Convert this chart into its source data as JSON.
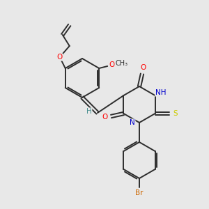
{
  "bg_color": "#e8e8e8",
  "bond_color": "#2d2d2d",
  "atom_colors": {
    "O": "#ff0000",
    "N": "#0000cc",
    "S": "#cccc00",
    "Br": "#cc6600",
    "H": "#4a9090",
    "C": "#2d2d2d"
  },
  "figsize": [
    3.0,
    3.0
  ],
  "dpi": 100
}
